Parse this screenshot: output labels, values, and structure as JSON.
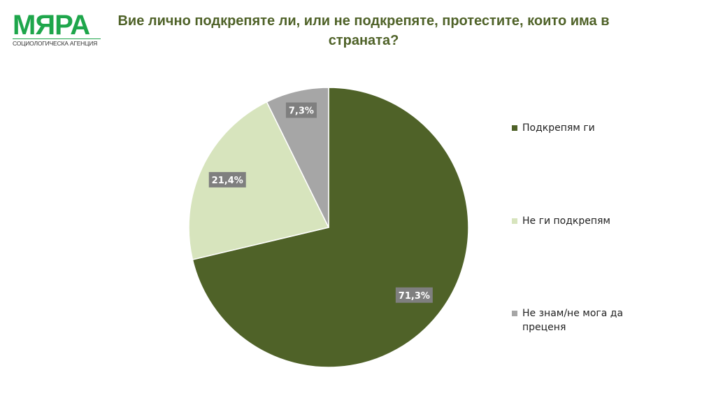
{
  "logo": {
    "name": "МЯРА",
    "subtitle": "СОЦИОЛОГИЧЕСКА АГЕНЦИЯ"
  },
  "chart_data": {
    "type": "pie",
    "title": "Вие лично подкрепяте ли, или не подкрепяте, протестите, които има в страната?",
    "categories": [
      "Подкрепям ги",
      "Не ги подкрепям",
      "Не знам/не мога да преценя"
    ],
    "values": [
      71.3,
      21.4,
      7.3
    ],
    "labels": [
      "71,3%",
      "21,4%",
      "7,3%"
    ],
    "colors": [
      "#4f6228",
      "#d7e4bd",
      "#a6a6a6"
    ],
    "start_angle": "top, clockwise",
    "legend": "right"
  }
}
